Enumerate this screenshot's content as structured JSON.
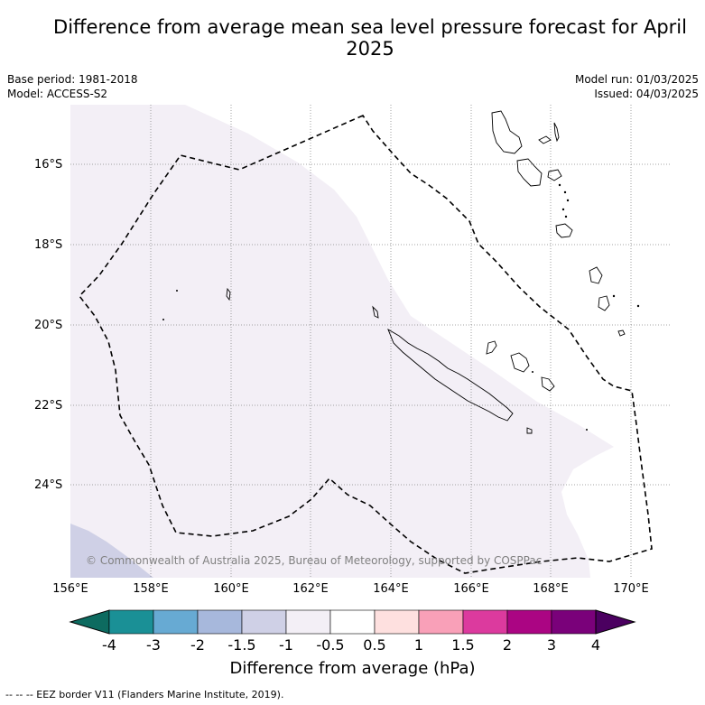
{
  "title": "Difference from average mean sea level pressure forecast for April 2025",
  "meta": {
    "base_period": "Base period: 1981-2018",
    "model": "Model: ACCESS-S2",
    "model_run": "Model run: 01/03/2025",
    "issued": "Issued: 04/03/2025"
  },
  "copyright": "© Commonwealth of Australia 2025, Bureau of Meteorology, supported by COSPPac",
  "lat_labels": [
    "16°S",
    "18°S",
    "20°S",
    "22°S",
    "24°S"
  ],
  "lon_labels": [
    "156°E",
    "158°E",
    "160°E",
    "162°E",
    "164°E",
    "166°E",
    "168°E",
    "170°E"
  ],
  "colorbar": {
    "title": "Difference from average (hPa)",
    "ticks": [
      "-4",
      "-3",
      "-2",
      "-1.5",
      "-1",
      "-0.5",
      "0.5",
      "1",
      "1.5",
      "2",
      "3",
      "4"
    ],
    "colors": [
      "#1a9096",
      "#67aad3",
      "#a7b8dc",
      "#cfd0e6",
      "#f3eff6",
      "#ffffff",
      "#fee0df",
      "#f9a0b8",
      "#dc3a9e",
      "#ab0583",
      "#7a017a"
    ],
    "under_color": "#0d6b60",
    "over_color": "#4b0060"
  },
  "map": {
    "field_colors": {
      "minus_half_to_minus_one": "#f3eff6",
      "minus_one_to_minus_one_half": "#cfd0e6",
      "neutral": "#ffffff"
    },
    "border_color": "#000000"
  },
  "footnote": "--  --  -- EEZ border V11 (Flanders Marine Institute, 2019)."
}
